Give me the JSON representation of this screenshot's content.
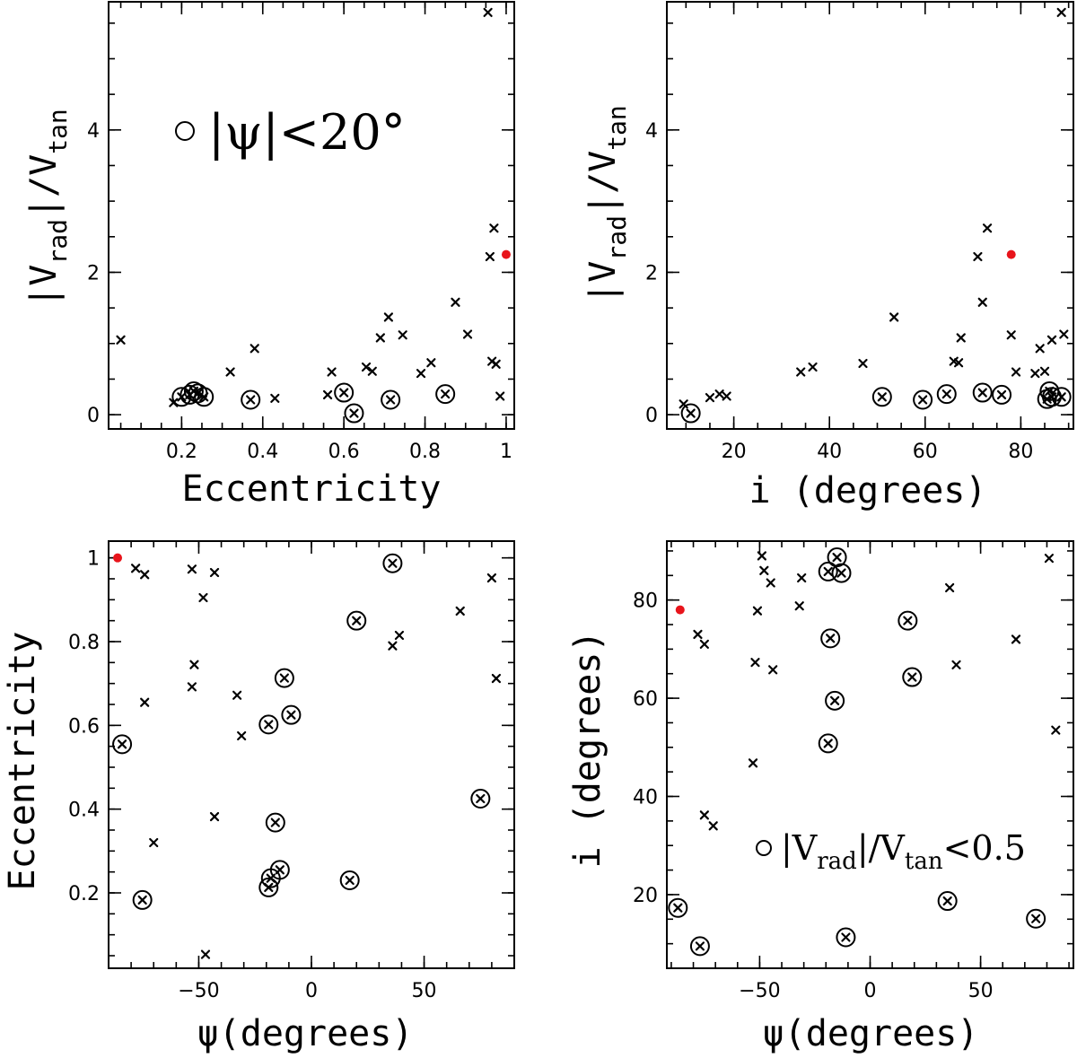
{
  "colors": {
    "highlight": "#e8141b",
    "ink": "#000000",
    "background": "#ffffff"
  },
  "annotations": {
    "psi_legend": {
      "symbol": "○",
      "text": "|ψ|<20°"
    },
    "vrad_legend": {
      "symbol": "○",
      "prefix": "|V",
      "sub_rad": "rad",
      "mid": "|/V",
      "sub_tan": "tan",
      "suffix": "<0.5"
    }
  },
  "chart_data": [
    {
      "id": "panel-vratio-vs-ecc",
      "type": "scatter",
      "xlabel": "Eccentricity",
      "ylabel": {
        "prefix": "|V",
        "sub1": "rad",
        "mid": "|/V",
        "sub2": "tan"
      },
      "xlim": [
        0.02,
        1.02
      ],
      "ylim": [
        -0.2,
        5.8
      ],
      "xticks": [
        0.2,
        0.4,
        0.6,
        0.8,
        1
      ],
      "xtick_labels": [
        "0.2",
        "0.4",
        "0.6",
        "0.8",
        "1"
      ],
      "yticks": [
        0,
        2,
        4
      ],
      "ytick_labels": [
        "0",
        "2",
        "4"
      ],
      "x_minor": 0.05,
      "y_minor": 0.5,
      "points": [
        {
          "x": 0.05,
          "y": 1.05,
          "circled": false
        },
        {
          "x": 0.18,
          "y": 0.17,
          "circled": false
        },
        {
          "x": 0.2,
          "y": 0.25,
          "circled": true
        },
        {
          "x": 0.22,
          "y": 0.28,
          "circled": true
        },
        {
          "x": 0.23,
          "y": 0.33,
          "circled": true
        },
        {
          "x": 0.24,
          "y": 0.3,
          "circled": true
        },
        {
          "x": 0.255,
          "y": 0.25,
          "circled": true
        },
        {
          "x": 0.32,
          "y": 0.6,
          "circled": false
        },
        {
          "x": 0.37,
          "y": 0.21,
          "circled": true
        },
        {
          "x": 0.38,
          "y": 0.93,
          "circled": false
        },
        {
          "x": 0.43,
          "y": 0.23,
          "circled": false
        },
        {
          "x": 0.56,
          "y": 0.28,
          "circled": false
        },
        {
          "x": 0.57,
          "y": 0.6,
          "circled": false
        },
        {
          "x": 0.6,
          "y": 0.31,
          "circled": true
        },
        {
          "x": 0.625,
          "y": 0.02,
          "circled": true
        },
        {
          "x": 0.655,
          "y": 0.67,
          "circled": false
        },
        {
          "x": 0.67,
          "y": 0.61,
          "circled": false
        },
        {
          "x": 0.69,
          "y": 1.08,
          "circled": false
        },
        {
          "x": 0.71,
          "y": 1.37,
          "circled": false
        },
        {
          "x": 0.715,
          "y": 0.21,
          "circled": true
        },
        {
          "x": 0.745,
          "y": 1.12,
          "circled": false
        },
        {
          "x": 0.79,
          "y": 0.58,
          "circled": false
        },
        {
          "x": 0.815,
          "y": 0.73,
          "circled": false
        },
        {
          "x": 0.85,
          "y": 0.29,
          "circled": true
        },
        {
          "x": 0.875,
          "y": 1.58,
          "circled": false
        },
        {
          "x": 0.905,
          "y": 1.13,
          "circled": false
        },
        {
          "x": 0.955,
          "y": 5.65,
          "circled": false
        },
        {
          "x": 0.96,
          "y": 2.22,
          "circled": false
        },
        {
          "x": 0.965,
          "y": 0.75,
          "circled": false
        },
        {
          "x": 0.97,
          "y": 2.62,
          "circled": false
        },
        {
          "x": 0.975,
          "y": 0.71,
          "circled": false
        },
        {
          "x": 0.985,
          "y": 0.26,
          "circled": false
        }
      ],
      "highlight": [
        {
          "x": 1.0,
          "y": 2.25
        }
      ]
    },
    {
      "id": "panel-vratio-vs-incl",
      "type": "scatter",
      "xlabel": "i (degrees)",
      "ylabel": {
        "prefix": "|V",
        "sub1": "rad",
        "mid": "|/V",
        "sub2": "tan"
      },
      "xlim": [
        6,
        91
      ],
      "ylim": [
        -0.2,
        5.8
      ],
      "xticks": [
        20,
        40,
        60,
        80
      ],
      "xtick_labels": [
        "20",
        "40",
        "60",
        "80"
      ],
      "yticks": [
        0,
        2,
        4
      ],
      "ytick_labels": [
        "0",
        "2",
        "4"
      ],
      "x_minor": 5,
      "y_minor": 0.5,
      "points": [
        {
          "x": 9.5,
          "y": 0.15,
          "circled": false
        },
        {
          "x": 11,
          "y": 0.02,
          "circled": true
        },
        {
          "x": 15,
          "y": 0.24,
          "circled": false
        },
        {
          "x": 17,
          "y": 0.29,
          "circled": false
        },
        {
          "x": 18.5,
          "y": 0.26,
          "circled": false
        },
        {
          "x": 34,
          "y": 0.6,
          "circled": false
        },
        {
          "x": 36.5,
          "y": 0.67,
          "circled": false
        },
        {
          "x": 47,
          "y": 0.72,
          "circled": false
        },
        {
          "x": 51,
          "y": 0.25,
          "circled": true
        },
        {
          "x": 53.5,
          "y": 1.37,
          "circled": false
        },
        {
          "x": 59.5,
          "y": 0.21,
          "circled": true
        },
        {
          "x": 64.5,
          "y": 0.29,
          "circled": true
        },
        {
          "x": 66,
          "y": 0.75,
          "circled": false
        },
        {
          "x": 67,
          "y": 0.73,
          "circled": false
        },
        {
          "x": 67.5,
          "y": 1.08,
          "circled": false
        },
        {
          "x": 71,
          "y": 2.22,
          "circled": false
        },
        {
          "x": 72,
          "y": 1.58,
          "circled": false
        },
        {
          "x": 72,
          "y": 0.31,
          "circled": true
        },
        {
          "x": 73,
          "y": 2.62,
          "circled": false
        },
        {
          "x": 76,
          "y": 0.28,
          "circled": true
        },
        {
          "x": 78,
          "y": 1.12,
          "circled": false
        },
        {
          "x": 79,
          "y": 0.6,
          "circled": false
        },
        {
          "x": 83,
          "y": 0.58,
          "circled": false
        },
        {
          "x": 84,
          "y": 0.93,
          "circled": false
        },
        {
          "x": 85,
          "y": 0.61,
          "circled": false
        },
        {
          "x": 85.5,
          "y": 0.22,
          "circled": true
        },
        {
          "x": 86,
          "y": 0.33,
          "circled": true
        },
        {
          "x": 86.5,
          "y": 1.05,
          "circled": false
        },
        {
          "x": 86.5,
          "y": 0.25,
          "circled": true
        },
        {
          "x": 88.5,
          "y": 0.25,
          "circled": true
        },
        {
          "x": 89,
          "y": 1.13,
          "circled": false
        },
        {
          "x": 88.5,
          "y": 5.65,
          "circled": false
        }
      ],
      "highlight": [
        {
          "x": 78,
          "y": 2.25
        }
      ]
    },
    {
      "id": "panel-ecc-vs-psi",
      "type": "scatter",
      "xlabel": "ψ(degrees)",
      "ylabel": "Eccentricity",
      "xlim": [
        -90,
        90
      ],
      "ylim": [
        0.02,
        1.04
      ],
      "xticks": [
        -50,
        0,
        50
      ],
      "xtick_labels": [
        "−50",
        "0",
        "50"
      ],
      "yticks": [
        0.2,
        0.4,
        0.6,
        0.8,
        1
      ],
      "ytick_labels": [
        "0.2",
        "0.4",
        "0.6",
        "0.8",
        "1"
      ],
      "x_minor": 10,
      "y_minor": 0.05,
      "points": [
        {
          "x": -78,
          "y": 0.975,
          "circled": false
        },
        {
          "x": -74,
          "y": 0.96,
          "circled": false
        },
        {
          "x": -53,
          "y": 0.973,
          "circled": false
        },
        {
          "x": -43,
          "y": 0.965,
          "circled": false
        },
        {
          "x": -48,
          "y": 0.905,
          "circled": false
        },
        {
          "x": -52,
          "y": 0.745,
          "circled": false
        },
        {
          "x": -53,
          "y": 0.692,
          "circled": false
        },
        {
          "x": -74,
          "y": 0.655,
          "circled": false
        },
        {
          "x": -33,
          "y": 0.672,
          "circled": false
        },
        {
          "x": -31,
          "y": 0.575,
          "circled": false
        },
        {
          "x": -84,
          "y": 0.555,
          "circled": true
        },
        {
          "x": -70,
          "y": 0.32,
          "circled": false
        },
        {
          "x": -75,
          "y": 0.183,
          "circled": true
        },
        {
          "x": -43,
          "y": 0.382,
          "circled": false
        },
        {
          "x": -47,
          "y": 0.053,
          "circled": false
        },
        {
          "x": -19,
          "y": 0.602,
          "circled": true
        },
        {
          "x": -12,
          "y": 0.713,
          "circled": true
        },
        {
          "x": -9,
          "y": 0.625,
          "circled": true
        },
        {
          "x": -16,
          "y": 0.368,
          "circled": true
        },
        {
          "x": -14,
          "y": 0.255,
          "circled": true
        },
        {
          "x": -18,
          "y": 0.235,
          "circled": true
        },
        {
          "x": -19,
          "y": 0.213,
          "circled": true
        },
        {
          "x": 17,
          "y": 0.23,
          "circled": true
        },
        {
          "x": 20,
          "y": 0.85,
          "circled": true
        },
        {
          "x": 36,
          "y": 0.987,
          "circled": true
        },
        {
          "x": 36,
          "y": 0.79,
          "circled": false
        },
        {
          "x": 39,
          "y": 0.815,
          "circled": false
        },
        {
          "x": 66,
          "y": 0.873,
          "circled": false
        },
        {
          "x": 75,
          "y": 0.425,
          "circled": true
        },
        {
          "x": 80,
          "y": 0.952,
          "circled": false
        },
        {
          "x": 82,
          "y": 0.712,
          "circled": false
        }
      ],
      "highlight": [
        {
          "x": -86,
          "y": 1.0
        }
      ]
    },
    {
      "id": "panel-incl-vs-psi",
      "type": "scatter",
      "xlabel": "ψ(degrees)",
      "ylabel": "i (degrees)",
      "xlim": [
        -92,
        92
      ],
      "ylim": [
        5,
        92
      ],
      "xticks": [
        -50,
        0,
        50
      ],
      "xtick_labels": [
        "−50",
        "0",
        "50"
      ],
      "yticks": [
        20,
        40,
        60,
        80
      ],
      "ytick_labels": [
        "20",
        "40",
        "60",
        "80"
      ],
      "x_minor": 10,
      "y_minor": 5,
      "points": [
        {
          "x": -49,
          "y": 89,
          "circled": false
        },
        {
          "x": -48,
          "y": 86,
          "circled": false
        },
        {
          "x": -45,
          "y": 83.5,
          "circled": false
        },
        {
          "x": -31,
          "y": 84.5,
          "circled": false
        },
        {
          "x": -32,
          "y": 78.8,
          "circled": false
        },
        {
          "x": -51,
          "y": 77.8,
          "circled": false
        },
        {
          "x": -78,
          "y": 73,
          "circled": false
        },
        {
          "x": -75,
          "y": 71,
          "circled": false
        },
        {
          "x": -52,
          "y": 67.3,
          "circled": false
        },
        {
          "x": -44,
          "y": 65.8,
          "circled": false
        },
        {
          "x": -53,
          "y": 46.8,
          "circled": false
        },
        {
          "x": -75,
          "y": 36.2,
          "circled": false
        },
        {
          "x": -71,
          "y": 34,
          "circled": false
        },
        {
          "x": -87,
          "y": 17.3,
          "circled": true
        },
        {
          "x": -77,
          "y": 9.5,
          "circled": true
        },
        {
          "x": -19,
          "y": 85.8,
          "circled": true
        },
        {
          "x": -15,
          "y": 88.7,
          "circled": true
        },
        {
          "x": -13,
          "y": 85.5,
          "circled": true
        },
        {
          "x": -18,
          "y": 72.2,
          "circled": true
        },
        {
          "x": -16,
          "y": 59.5,
          "circled": true
        },
        {
          "x": -19,
          "y": 50.8,
          "circled": true
        },
        {
          "x": -11,
          "y": 11.3,
          "circled": true
        },
        {
          "x": 17,
          "y": 75.8,
          "circled": true
        },
        {
          "x": 19,
          "y": 64.3,
          "circled": true
        },
        {
          "x": 36,
          "y": 82.5,
          "circled": false
        },
        {
          "x": 39,
          "y": 66.8,
          "circled": false
        },
        {
          "x": 35,
          "y": 18.7,
          "circled": true
        },
        {
          "x": 66,
          "y": 72,
          "circled": false
        },
        {
          "x": 75,
          "y": 15.1,
          "circled": true
        },
        {
          "x": 81,
          "y": 88.5,
          "circled": false
        },
        {
          "x": 84,
          "y": 53.5,
          "circled": false
        }
      ],
      "highlight": [
        {
          "x": -86,
          "y": 78
        }
      ]
    }
  ]
}
